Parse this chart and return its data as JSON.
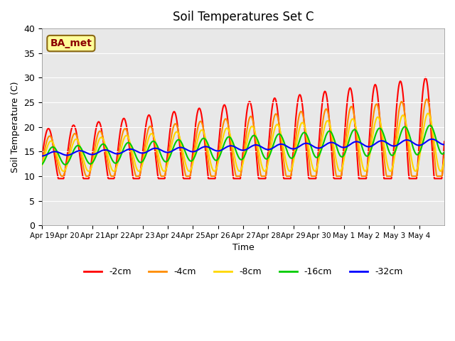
{
  "title": "Soil Temperatures Set C",
  "xlabel": "Time",
  "ylabel": "Soil Temperature (C)",
  "ylim": [
    0,
    40
  ],
  "yticks": [
    0,
    5,
    10,
    15,
    20,
    25,
    30,
    35,
    40
  ],
  "annotation": "BA_met",
  "annotation_color": "#8B0000",
  "annotation_bg": "#FFFF99",
  "colors": {
    "-2cm": "#FF0000",
    "-4cm": "#FF8C00",
    "-8cm": "#FFD700",
    "-16cm": "#00CC00",
    "-32cm": "#0000FF"
  },
  "legend_labels": [
    "-2cm",
    "-4cm",
    "-8cm",
    "-16cm",
    "-32cm"
  ],
  "num_days": 16,
  "background_color": "#E8E8E8",
  "tick_labels": [
    "Apr 19",
    "Apr 20",
    "Apr 21",
    "Apr 22",
    "Apr 23",
    "Apr 24",
    "Apr 25",
    "Apr 26",
    "Apr 27",
    "Apr 28",
    "Apr 29",
    "Apr 30",
    "May 1",
    "May 2",
    "May 3",
    "May 4"
  ]
}
